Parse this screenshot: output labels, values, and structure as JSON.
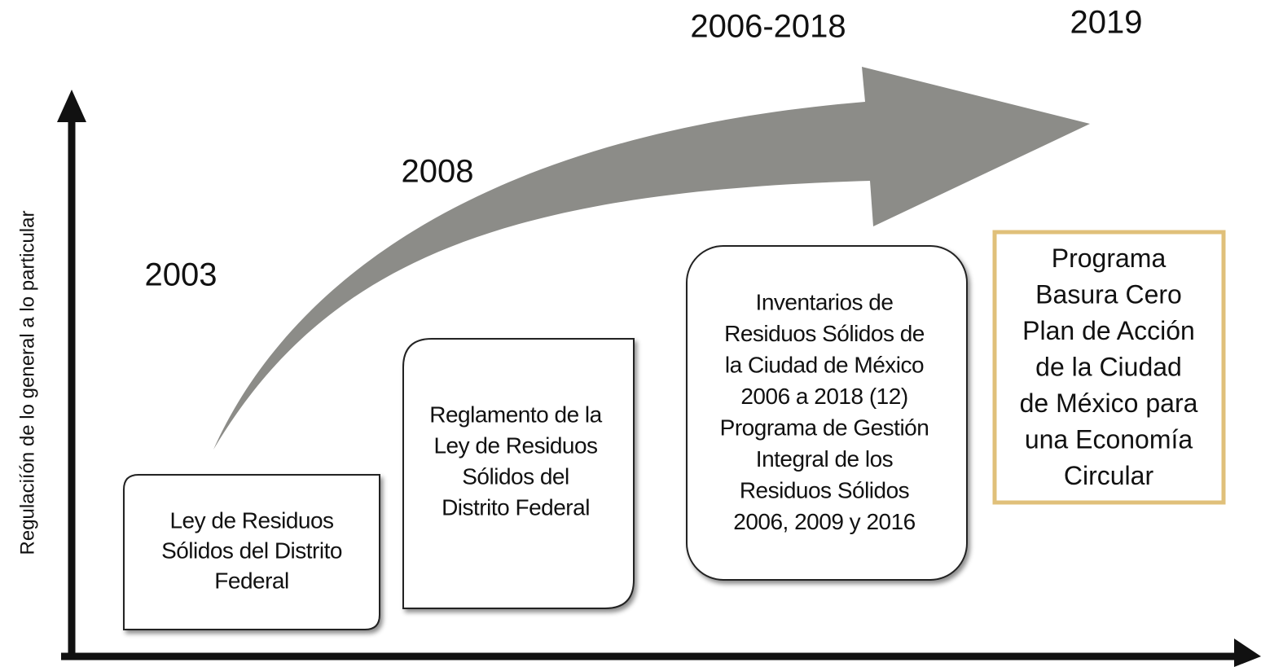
{
  "axis_label": "Regulaciíón de lo general a lo particular",
  "years": [
    "2003",
    "2008",
    "2006-2018",
    "2019"
  ],
  "boxes": [
    {
      "lines": [
        "Ley de Residuos",
        "Sólidos del Distrito",
        "Federal"
      ]
    },
    {
      "lines": [
        "Reglamento de la",
        "Ley de Residuos",
        "Sólidos del",
        "Distrito Federal"
      ]
    },
    {
      "lines": [
        "Inventarios de",
        "Residuos Sólidos de",
        "la Ciudad de México",
        "2006 a 2018 (12)",
        "Programa de Gestión",
        "Integral de los",
        "Residuos Sólidos",
        "2006, 2009 y 2016"
      ]
    },
    {
      "lines": [
        "Programa",
        "Basura Cero",
        "Plan de Acción",
        "de la Ciudad",
        "de México para",
        "una Economía",
        "Circular"
      ]
    }
  ]
}
